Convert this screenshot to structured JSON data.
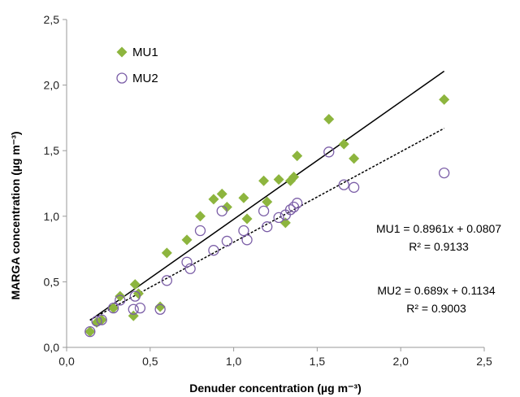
{
  "chart_data": {
    "type": "scatter",
    "title": "",
    "xlabel": "Denuder concentration (µg m⁻³)",
    "ylabel": "MARGA concentration (µg m⁻³)",
    "xlim": [
      0,
      2.5
    ],
    "ylim": [
      0,
      2.5
    ],
    "x_ticks": [
      "0,0",
      "0,5",
      "1,0",
      "1,5",
      "2,0",
      "2,5"
    ],
    "y_ticks": [
      "0,0",
      "0,5",
      "1,0",
      "1,5",
      "2,0",
      "2,5"
    ],
    "grid": false,
    "legend_position": "top-left",
    "series": [
      {
        "name": "MU1",
        "marker": "diamond",
        "color": "#8db53e",
        "points": [
          [
            0.14,
            0.12
          ],
          [
            0.18,
            0.19
          ],
          [
            0.21,
            0.21
          ],
          [
            0.28,
            0.3
          ],
          [
            0.32,
            0.39
          ],
          [
            0.4,
            0.24
          ],
          [
            0.41,
            0.48
          ],
          [
            0.43,
            0.41
          ],
          [
            0.56,
            0.31
          ],
          [
            0.6,
            0.72
          ],
          [
            0.72,
            0.82
          ],
          [
            0.8,
            1.0
          ],
          [
            0.88,
            1.13
          ],
          [
            0.93,
            1.17
          ],
          [
            0.96,
            1.07
          ],
          [
            1.06,
            1.14
          ],
          [
            1.08,
            0.98
          ],
          [
            1.18,
            1.27
          ],
          [
            1.2,
            1.11
          ],
          [
            1.27,
            1.28
          ],
          [
            1.31,
            0.95
          ],
          [
            1.34,
            1.27
          ],
          [
            1.36,
            1.3
          ],
          [
            1.38,
            1.46
          ],
          [
            1.57,
            1.74
          ],
          [
            1.66,
            1.55
          ],
          [
            1.72,
            1.44
          ],
          [
            2.26,
            1.89
          ]
        ]
      },
      {
        "name": "MU2",
        "marker": "circle",
        "color": "#7b5ea7",
        "points": [
          [
            0.14,
            0.12
          ],
          [
            0.18,
            0.2
          ],
          [
            0.21,
            0.21
          ],
          [
            0.28,
            0.3
          ],
          [
            0.32,
            0.36
          ],
          [
            0.4,
            0.29
          ],
          [
            0.41,
            0.39
          ],
          [
            0.44,
            0.3
          ],
          [
            0.56,
            0.29
          ],
          [
            0.6,
            0.51
          ],
          [
            0.72,
            0.65
          ],
          [
            0.74,
            0.6
          ],
          [
            0.8,
            0.89
          ],
          [
            0.88,
            0.74
          ],
          [
            0.93,
            1.04
          ],
          [
            0.96,
            0.81
          ],
          [
            1.06,
            0.89
          ],
          [
            1.08,
            0.82
          ],
          [
            1.18,
            1.04
          ],
          [
            1.2,
            0.92
          ],
          [
            1.27,
            0.99
          ],
          [
            1.31,
            1.01
          ],
          [
            1.34,
            1.05
          ],
          [
            1.36,
            1.07
          ],
          [
            1.38,
            1.1
          ],
          [
            1.57,
            1.49
          ],
          [
            1.66,
            1.24
          ],
          [
            1.72,
            1.22
          ],
          [
            2.26,
            1.33
          ]
        ]
      }
    ],
    "trendlines": [
      {
        "series": "MU1",
        "slope": 0.8961,
        "intercept": 0.0807,
        "x_range": [
          0.14,
          2.26
        ],
        "style": "solid",
        "color": "#000000"
      },
      {
        "series": "MU2",
        "slope": 0.689,
        "intercept": 0.1134,
        "x_range": [
          0.14,
          2.26
        ],
        "style": "dashed",
        "color": "#000000"
      }
    ],
    "annotations": {
      "mu1_equation": "MU1 = 0.8961x + 0.0807",
      "mu1_r2": "R² = 0.9133",
      "mu2_equation": "MU2 = 0.689x + 0.1134",
      "mu2_r2": "R² = 0.9003"
    }
  }
}
